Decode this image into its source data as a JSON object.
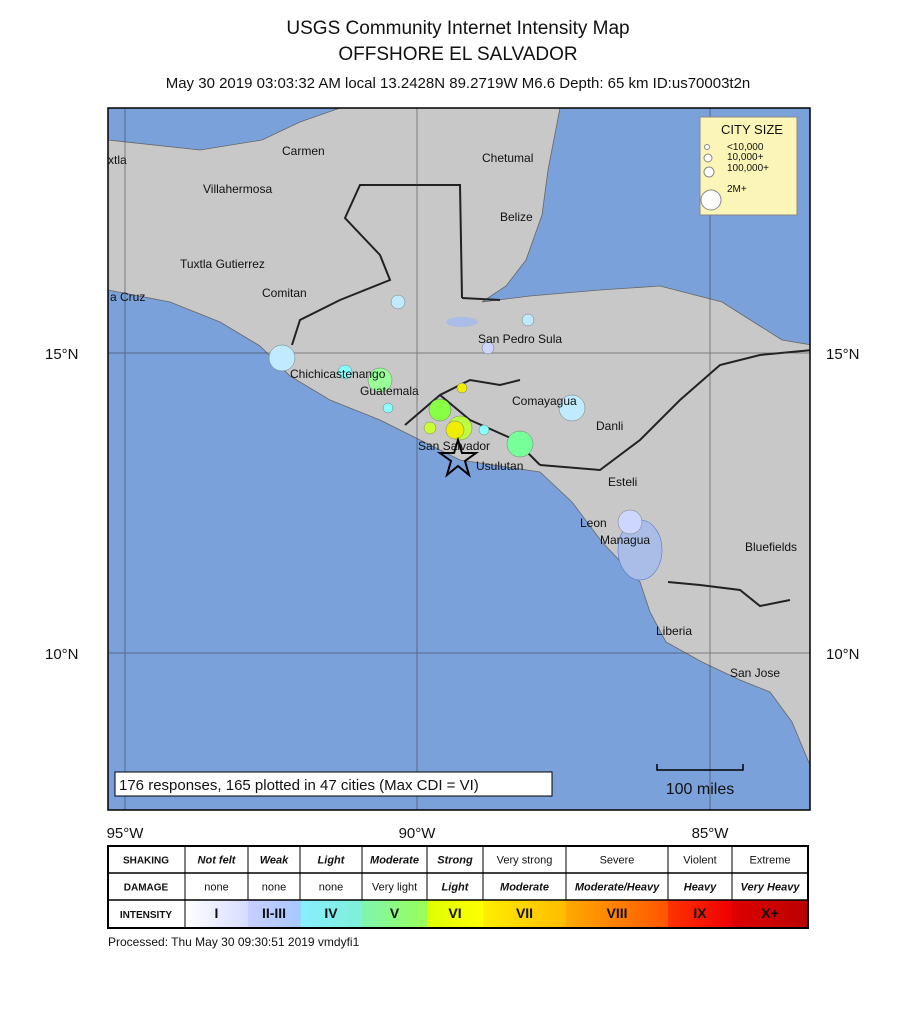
{
  "header": {
    "title": "USGS Community Internet Intensity Map",
    "subtitle": "OFFSHORE EL SALVADOR",
    "info": "May 30 2019 03:03:32 AM local 13.2428N 89.2719W M6.6 Depth: 65 km ID:us70003t2n"
  },
  "map": {
    "cities": [
      "xtla",
      "Carmen",
      "Chetumal",
      "Villahermosa",
      "Belize",
      "Tuxtla Gutierrez",
      "Comitan",
      "a Cruz",
      "San Pedro Sula",
      "Chichicastenango",
      "Guatemala",
      "Comayagua",
      "Danli",
      "San Salvador",
      "Usulutan",
      "Esteli",
      "Leon",
      "Managua",
      "Bluefields",
      "Liberia",
      "San Jose"
    ],
    "lat_labels": [
      "15°N",
      "10°N"
    ],
    "lon_labels": [
      "95°W",
      "90°W",
      "85°W"
    ],
    "city_size": {
      "title": "CITY SIZE",
      "items": [
        "<10,000",
        "10,000+",
        "100,000+",
        "2M+"
      ]
    },
    "responses": "176 responses, 165 plotted in 47 cities (Max CDI = VI)",
    "scale": "100 miles"
  },
  "legend": {
    "rows": [
      {
        "label": "SHAKING",
        "cells": [
          "Not felt",
          "Weak",
          "Light",
          "Moderate",
          "Strong",
          "Very strong",
          "Severe",
          "Violent",
          "Extreme"
        ]
      },
      {
        "label": "DAMAGE",
        "cells": [
          "none",
          "none",
          "none",
          "Very light",
          "Light",
          "Moderate",
          "Moderate/Heavy",
          "Heavy",
          "Very Heavy"
        ]
      },
      {
        "label": "INTENSITY",
        "cells": [
          "I",
          "II-III",
          "IV",
          "V",
          "VI",
          "VII",
          "VIII",
          "IX",
          "X+"
        ]
      }
    ]
  },
  "footer": {
    "processed": "Processed: Thu May 30 09:30:51 2019 vmdyfi1"
  }
}
